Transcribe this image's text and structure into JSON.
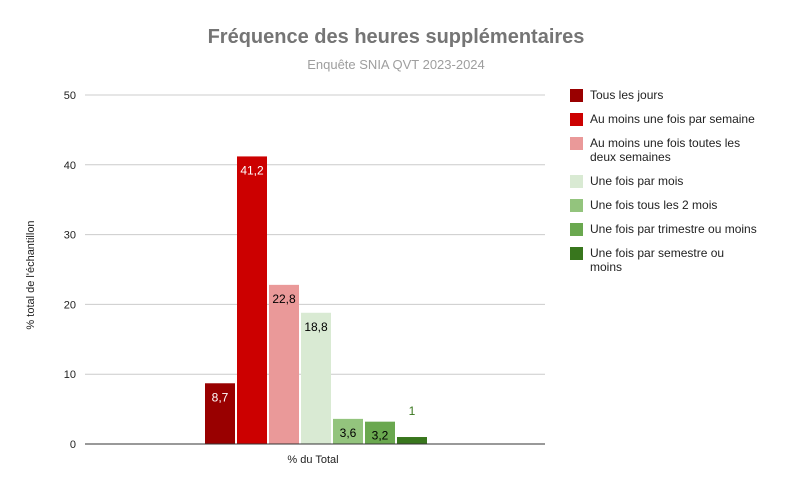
{
  "chart_data": {
    "type": "bar",
    "title": "Fréquence des heures supplémentaires",
    "subtitle": "Enquête SNIA QVT 2023-2024",
    "xlabel": "% du Total",
    "ylabel": "% total de l'échantillon",
    "ylim": [
      0,
      50
    ],
    "yticks": [
      0,
      10,
      20,
      30,
      40,
      50
    ],
    "grid": true,
    "legend_position": "right",
    "categories": [
      "% du Total"
    ],
    "series": [
      {
        "name": "Tous les jours",
        "values": [
          8.7
        ],
        "label": "8,7",
        "color": "#990000",
        "label_color": "#ffffff"
      },
      {
        "name": "Au moins une fois par semaine",
        "values": [
          41.2
        ],
        "label": "41,2",
        "color": "#cc0000",
        "label_color": "#ffffff"
      },
      {
        "name": "Au moins une fois toutes les deux semaines",
        "legend_lines": [
          "Au moins une fois toutes les",
          "deux semaines"
        ],
        "values": [
          22.8
        ],
        "label": "22,8",
        "color": "#ea9999",
        "label_color": "#000000"
      },
      {
        "name": "Une fois par mois",
        "values": [
          18.8
        ],
        "label": "18,8",
        "color": "#d9ead3",
        "label_color": "#000000"
      },
      {
        "name": "Une fois tous les 2 mois",
        "values": [
          3.6
        ],
        "label": "3,6",
        "color": "#93c47d",
        "label_color": "#000000"
      },
      {
        "name": "Une fois par trimestre ou moins",
        "values": [
          3.2
        ],
        "label": "3,2",
        "color": "#6aa84f",
        "label_color": "#000000"
      },
      {
        "name": "Une fois par semestre ou moins",
        "legend_lines": [
          "Une fois par semestre ou",
          "moins"
        ],
        "values": [
          1.0
        ],
        "label": "1",
        "color": "#38761d",
        "label_color": "#38761d"
      }
    ]
  }
}
